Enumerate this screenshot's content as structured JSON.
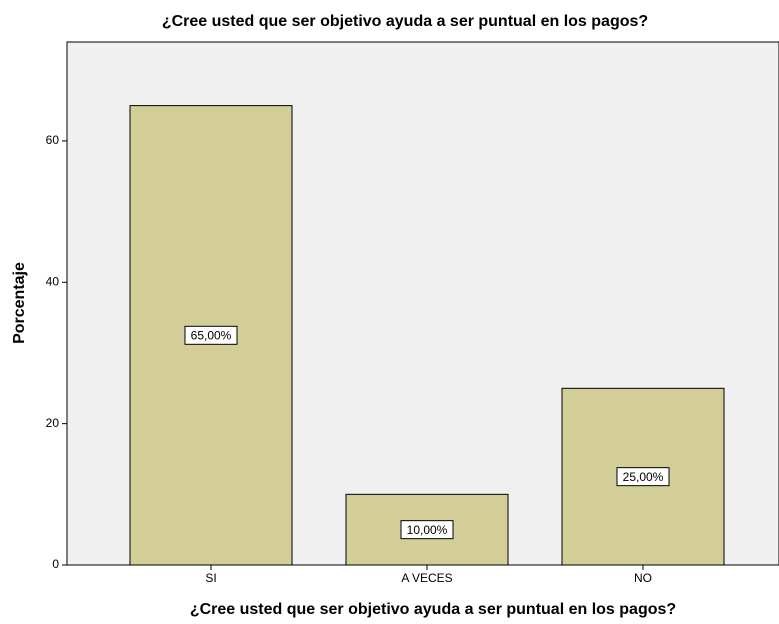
{
  "chart_data": {
    "type": "bar",
    "title": "¿Cree usted que ser objetivo ayuda a ser puntual en los pagos?",
    "x_label": "¿Cree usted que ser objetivo ayuda a ser puntual en los pagos?",
    "y_label": "Porcentaje",
    "categories": [
      "SI",
      "A VECES",
      "NO"
    ],
    "values": [
      65,
      10,
      25
    ],
    "value_labels": [
      "65,00%",
      "10,00%",
      "25,00%"
    ],
    "color": "#d3ce97",
    "ylim": [
      0,
      74
    ],
    "yticks": [
      0,
      20,
      40,
      60
    ],
    "grid": false
  }
}
